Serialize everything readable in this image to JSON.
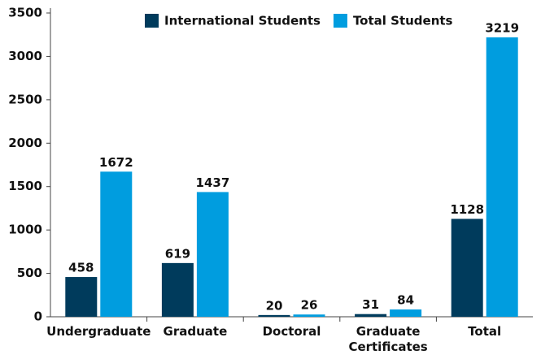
{
  "chart_data": {
    "type": "bar",
    "categories": [
      "Undergraduate",
      "Graduate",
      "Doctoral",
      "Graduate Certificates",
      "Total"
    ],
    "series": [
      {
        "name": "International Students",
        "color": "#003b5c",
        "values": [
          458,
          619,
          20,
          31,
          1128
        ]
      },
      {
        "name": "Total Students",
        "color": "#009ddf",
        "values": [
          1672,
          1437,
          26,
          84,
          3219
        ]
      }
    ],
    "ylim": [
      0,
      3500
    ],
    "yticks": [
      0,
      500,
      1000,
      1500,
      2000,
      2500,
      3000,
      3500
    ],
    "legend": "top"
  }
}
